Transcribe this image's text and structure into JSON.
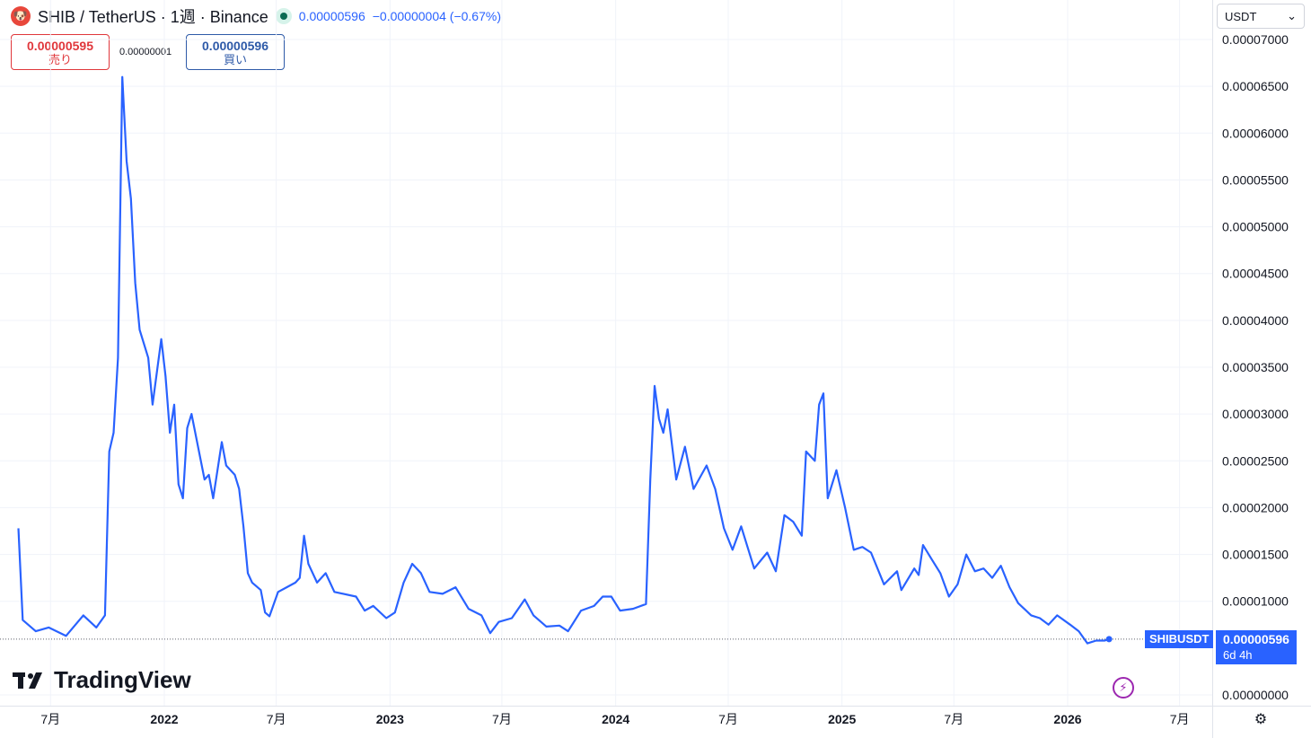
{
  "header": {
    "logo_icon": "shiba-inu-icon",
    "title": "SHIB / TetherUS · 1週 · Binance",
    "last_price": "0.00000596",
    "change": "−0.00000004 (−0.67%)"
  },
  "trade": {
    "sell_price": "0.00000595",
    "sell_label": "売り",
    "spread": "0.00000001",
    "buy_price": "0.00000596",
    "buy_label": "買い"
  },
  "currency_select": {
    "value": "USDT"
  },
  "watermark": {
    "text": "TradingView"
  },
  "last_price_tag": {
    "symbol": "SHIBUSDT",
    "price": "0.00000596",
    "countdown": "6d 4h"
  },
  "colors": {
    "line": "#2962ff",
    "sell": "#e0373b",
    "buy": "#2e5aa8"
  },
  "chart_data": {
    "type": "line",
    "title": "SHIB / TetherUS · 1週 · Binance",
    "xlabel": "",
    "ylabel": "",
    "ylim": [
      0,
      7e-05
    ],
    "y_ticks": [
      "0.00007000",
      "0.00006500",
      "0.00006000",
      "0.00005500",
      "0.00005000",
      "0.00004500",
      "0.00004000",
      "0.00003500",
      "0.00003000",
      "0.00002500",
      "0.00002000",
      "0.00001500",
      "0.00001000",
      "0.00000000"
    ],
    "x_ticks": [
      {
        "label": "7月",
        "date": "2021-07-01"
      },
      {
        "label": "2022",
        "date": "2022-01-01"
      },
      {
        "label": "7月",
        "date": "2022-07-01"
      },
      {
        "label": "2023",
        "date": "2023-01-01"
      },
      {
        "label": "7月",
        "date": "2023-07-01"
      },
      {
        "label": "2024",
        "date": "2024-01-01"
      },
      {
        "label": "7月",
        "date": "2024-07-01"
      },
      {
        "label": "2025",
        "date": "2025-01-01"
      },
      {
        "label": "7月",
        "date": "2025-07-01"
      },
      {
        "label": "2026",
        "date": "2026-01-01"
      },
      {
        "label": "7月",
        "date": "2026-07-01"
      }
    ],
    "grid": true,
    "series": [
      {
        "points": [
          [
            "2021-05-10",
            1.78e-05
          ],
          [
            "2021-05-17",
            8e-06
          ],
          [
            "2021-06-07",
            6.8e-06
          ],
          [
            "2021-06-28",
            7.2e-06
          ],
          [
            "2021-07-26",
            6.3e-06
          ],
          [
            "2021-08-23",
            8.5e-06
          ],
          [
            "2021-09-13",
            7.2e-06
          ],
          [
            "2021-09-27",
            8.5e-06
          ],
          [
            "2021-10-04",
            2.6e-05
          ],
          [
            "2021-10-11",
            2.8e-05
          ],
          [
            "2021-10-18",
            3.6e-05
          ],
          [
            "2021-10-25",
            6.6e-05
          ],
          [
            "2021-11-01",
            5.7e-05
          ],
          [
            "2021-11-08",
            5.3e-05
          ],
          [
            "2021-11-15",
            4.4e-05
          ],
          [
            "2021-11-22",
            3.9e-05
          ],
          [
            "2021-12-06",
            3.6e-05
          ],
          [
            "2021-12-13",
            3.1e-05
          ],
          [
            "2021-12-27",
            3.8e-05
          ],
          [
            "2022-01-03",
            3.4e-05
          ],
          [
            "2022-01-10",
            2.8e-05
          ],
          [
            "2022-01-17",
            3.1e-05
          ],
          [
            "2022-01-24",
            2.25e-05
          ],
          [
            "2022-01-31",
            2.1e-05
          ],
          [
            "2022-02-07",
            2.85e-05
          ],
          [
            "2022-02-14",
            3e-05
          ],
          [
            "2022-03-07",
            2.3e-05
          ],
          [
            "2022-03-14",
            2.35e-05
          ],
          [
            "2022-03-21",
            2.1e-05
          ],
          [
            "2022-04-04",
            2.7e-05
          ],
          [
            "2022-04-11",
            2.45e-05
          ],
          [
            "2022-04-25",
            2.35e-05
          ],
          [
            "2022-05-02",
            2.2e-05
          ],
          [
            "2022-05-09",
            1.8e-05
          ],
          [
            "2022-05-16",
            1.3e-05
          ],
          [
            "2022-05-23",
            1.2e-05
          ],
          [
            "2022-06-06",
            1.12e-05
          ],
          [
            "2022-06-13",
            8.8e-06
          ],
          [
            "2022-06-20",
            8.4e-06
          ],
          [
            "2022-07-04",
            1.1e-05
          ],
          [
            "2022-07-18",
            1.15e-05
          ],
          [
            "2022-08-01",
            1.2e-05
          ],
          [
            "2022-08-08",
            1.25e-05
          ],
          [
            "2022-08-15",
            1.7e-05
          ],
          [
            "2022-08-22",
            1.4e-05
          ],
          [
            "2022-09-05",
            1.2e-05
          ],
          [
            "2022-09-19",
            1.3e-05
          ],
          [
            "2022-10-03",
            1.1e-05
          ],
          [
            "2022-11-07",
            1.05e-05
          ],
          [
            "2022-11-21",
            9e-06
          ],
          [
            "2022-12-05",
            9.5e-06
          ],
          [
            "2022-12-26",
            8.2e-06
          ],
          [
            "2023-01-09",
            8.8e-06
          ],
          [
            "2023-01-23",
            1.2e-05
          ],
          [
            "2023-02-06",
            1.4e-05
          ],
          [
            "2023-02-20",
            1.3e-05
          ],
          [
            "2023-03-06",
            1.1e-05
          ],
          [
            "2023-03-27",
            1.08e-05
          ],
          [
            "2023-04-17",
            1.15e-05
          ],
          [
            "2023-05-08",
            9.2e-06
          ],
          [
            "2023-05-29",
            8.5e-06
          ],
          [
            "2023-06-12",
            6.6e-06
          ],
          [
            "2023-06-26",
            7.8e-06
          ],
          [
            "2023-07-17",
            8.2e-06
          ],
          [
            "2023-08-07",
            1.02e-05
          ],
          [
            "2023-08-21",
            8.5e-06
          ],
          [
            "2023-09-11",
            7.3e-06
          ],
          [
            "2023-10-02",
            7.4e-06
          ],
          [
            "2023-10-16",
            6.8e-06
          ],
          [
            "2023-11-06",
            9e-06
          ],
          [
            "2023-11-27",
            9.5e-06
          ],
          [
            "2023-12-11",
            1.05e-05
          ],
          [
            "2023-12-25",
            1.05e-05
          ],
          [
            "2024-01-08",
            9e-06
          ],
          [
            "2024-01-29",
            9.2e-06
          ],
          [
            "2024-02-19",
            9.7e-06
          ],
          [
            "2024-02-26",
            2.3e-05
          ],
          [
            "2024-03-04",
            3.3e-05
          ],
          [
            "2024-03-11",
            2.95e-05
          ],
          [
            "2024-03-18",
            2.8e-05
          ],
          [
            "2024-03-25",
            3.05e-05
          ],
          [
            "2024-04-08",
            2.3e-05
          ],
          [
            "2024-04-22",
            2.65e-05
          ],
          [
            "2024-05-06",
            2.2e-05
          ],
          [
            "2024-05-27",
            2.45e-05
          ],
          [
            "2024-06-10",
            2.2e-05
          ],
          [
            "2024-06-24",
            1.78e-05
          ],
          [
            "2024-07-08",
            1.55e-05
          ],
          [
            "2024-07-22",
            1.8e-05
          ],
          [
            "2024-08-12",
            1.35e-05
          ],
          [
            "2024-09-02",
            1.52e-05
          ],
          [
            "2024-09-16",
            1.32e-05
          ],
          [
            "2024-09-30",
            1.92e-05
          ],
          [
            "2024-10-14",
            1.85e-05
          ],
          [
            "2024-10-28",
            1.7e-05
          ],
          [
            "2024-11-04",
            2.6e-05
          ],
          [
            "2024-11-18",
            2.5e-05
          ],
          [
            "2024-11-25",
            3.1e-05
          ],
          [
            "2024-12-02",
            3.22e-05
          ],
          [
            "2024-12-09",
            2.1e-05
          ],
          [
            "2024-12-23",
            2.4e-05
          ],
          [
            "2025-01-06",
            2e-05
          ],
          [
            "2025-01-20",
            1.55e-05
          ],
          [
            "2025-02-03",
            1.58e-05
          ],
          [
            "2025-02-17",
            1.52e-05
          ],
          [
            "2025-03-10",
            1.18e-05
          ],
          [
            "2025-03-31",
            1.32e-05
          ],
          [
            "2025-04-07",
            1.12e-05
          ],
          [
            "2025-04-28",
            1.35e-05
          ],
          [
            "2025-05-05",
            1.28e-05
          ],
          [
            "2025-05-12",
            1.6e-05
          ],
          [
            "2025-05-26",
            1.45e-05
          ],
          [
            "2025-06-09",
            1.3e-05
          ],
          [
            "2025-06-23",
            1.05e-05
          ],
          [
            "2025-07-07",
            1.18e-05
          ],
          [
            "2025-07-21",
            1.5e-05
          ],
          [
            "2025-08-04",
            1.32e-05
          ],
          [
            "2025-08-18",
            1.35e-05
          ],
          [
            "2025-09-01",
            1.25e-05
          ],
          [
            "2025-09-15",
            1.38e-05
          ],
          [
            "2025-09-29",
            1.15e-05
          ],
          [
            "2025-10-13",
            9.8e-06
          ],
          [
            "2025-11-03",
            8.5e-06
          ],
          [
            "2025-11-17",
            8.2e-06
          ],
          [
            "2025-12-01",
            7.5e-06
          ],
          [
            "2025-12-15",
            8.5e-06
          ],
          [
            "2026-01-05",
            7.5e-06
          ],
          [
            "2026-01-19",
            6.8e-06
          ],
          [
            "2026-02-02",
            5.5e-06
          ],
          [
            "2026-02-16",
            5.8e-06
          ],
          [
            "2026-03-02",
            5.8e-06
          ],
          [
            "2026-03-09",
            5.96e-06
          ]
        ]
      }
    ]
  }
}
